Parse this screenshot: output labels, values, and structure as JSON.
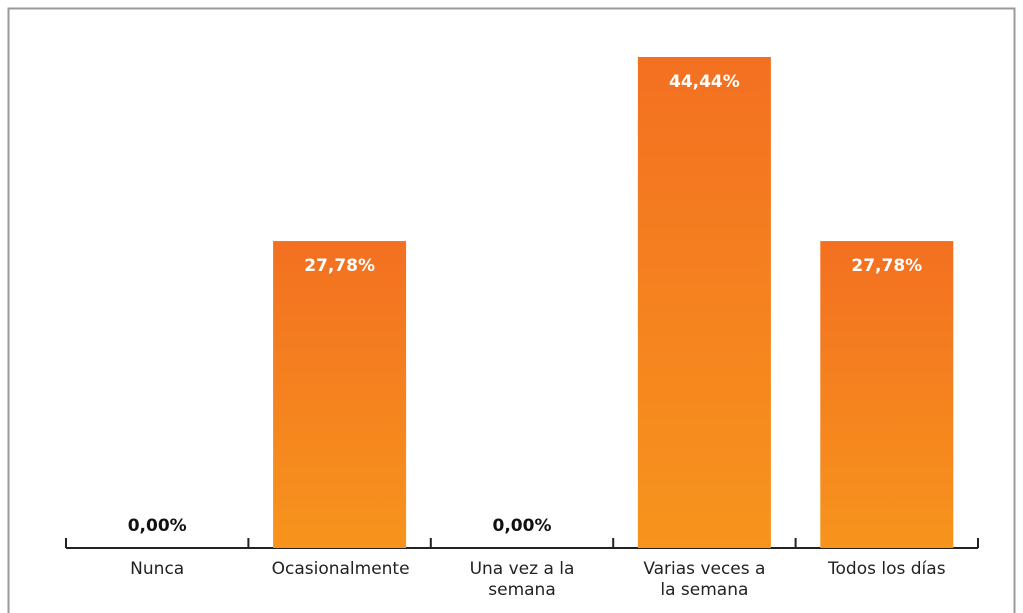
{
  "chart_data": {
    "type": "bar",
    "categories": [
      "Nunca",
      "Ocasionalmente",
      "Una vez a la semana",
      "Varias veces a la semana",
      "Todos los días"
    ],
    "values": [
      0,
      27.78,
      0,
      44.44,
      27.78
    ],
    "value_labels": [
      "0,00%",
      "27,78%",
      "0,00%",
      "44,44%",
      "27,78%"
    ],
    "color": "#f37021"
  }
}
